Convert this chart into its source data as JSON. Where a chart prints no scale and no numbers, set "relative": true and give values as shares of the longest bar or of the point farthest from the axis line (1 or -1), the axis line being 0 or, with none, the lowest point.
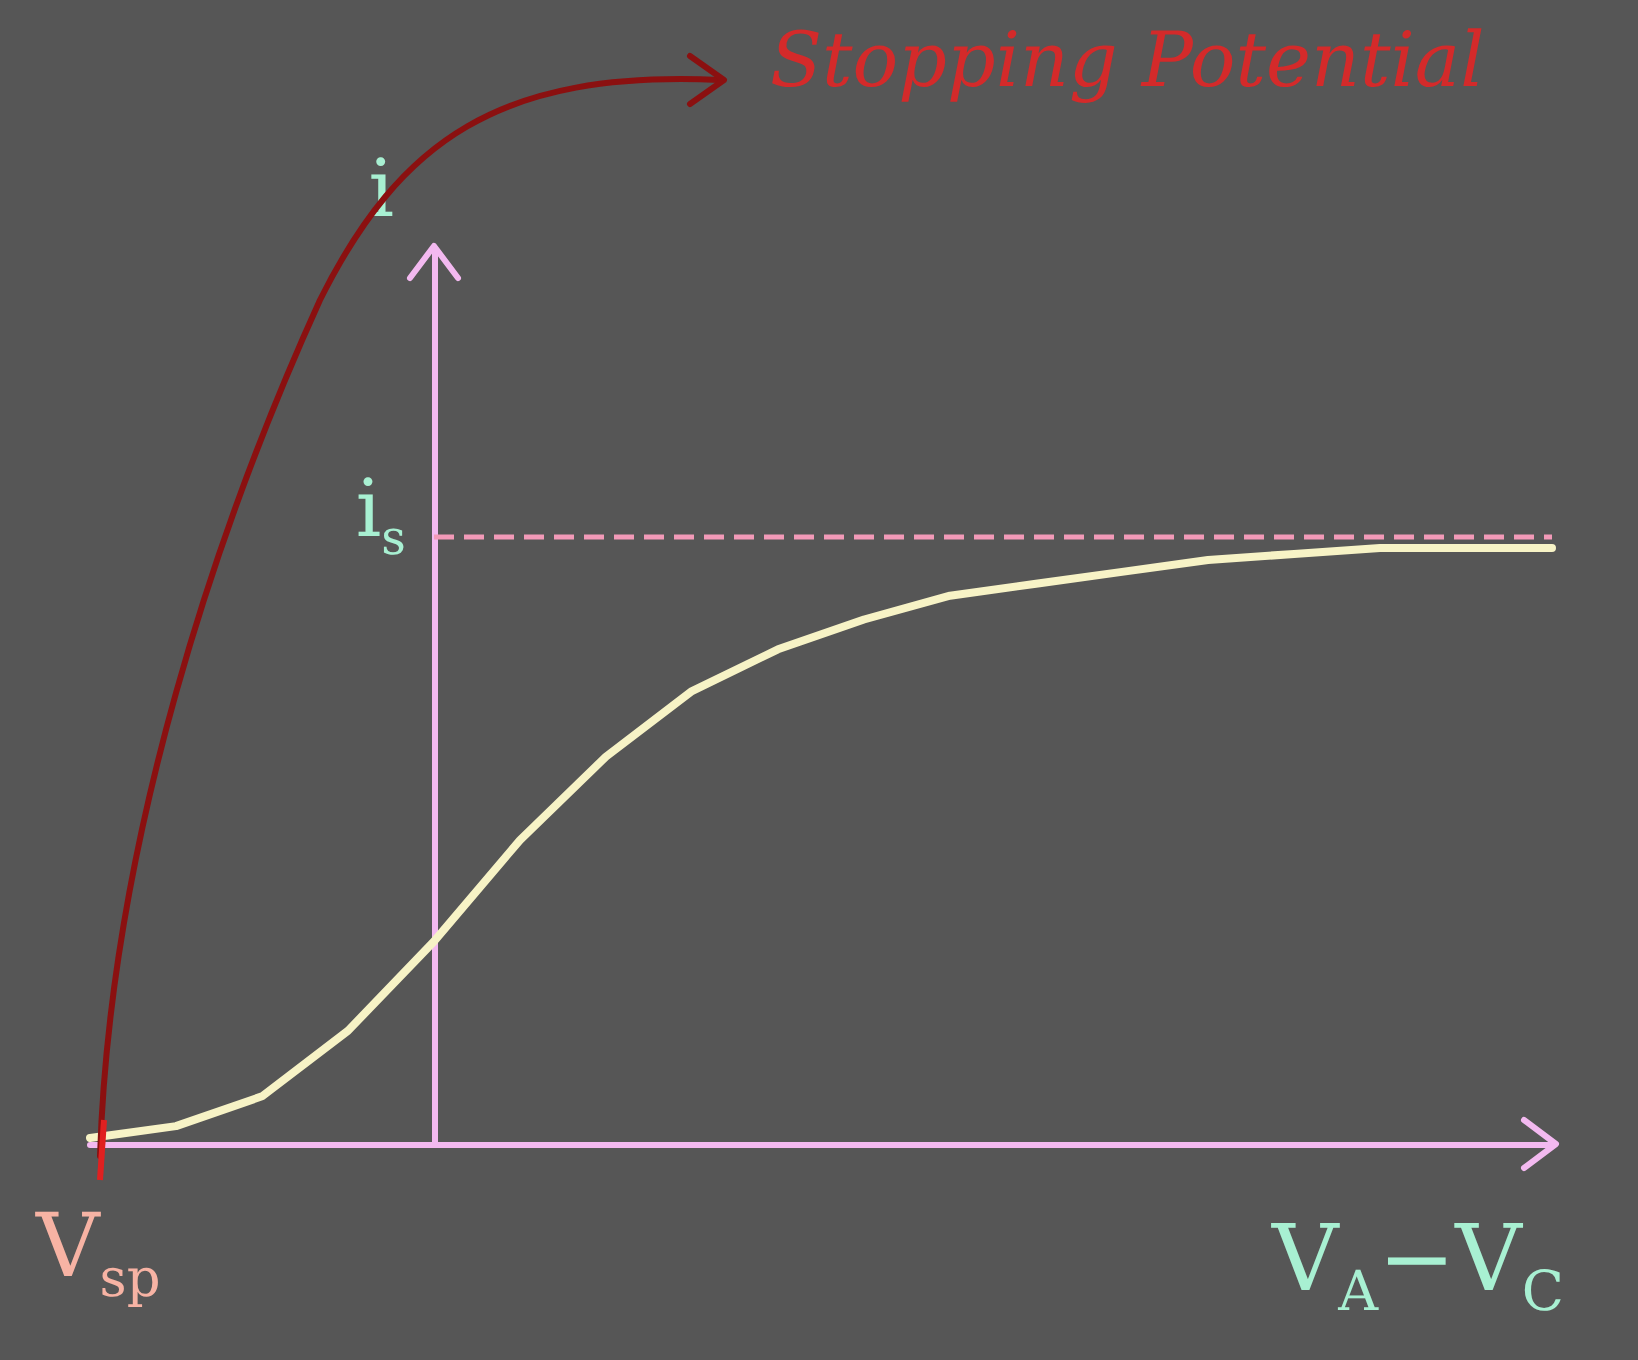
{
  "chart_data": {
    "type": "line",
    "relative": true,
    "categories": [
      null,
      null,
      null,
      null,
      null,
      null,
      null,
      null,
      null,
      null,
      null,
      null,
      null,
      null,
      null,
      null,
      null,
      null
    ],
    "series": [
      {
        "color": "#f7f3c6",
        "values": [
          0.01,
          0.03,
          0.08,
          0.19,
          0.34,
          0.51,
          0.65,
          0.76,
          0.83,
          0.88,
          0.92,
          0.94,
          0.96,
          0.98,
          0.99,
          1,
          1,
          1
        ]
      }
    ],
    "xlabel": "V$_{A}$−V$_{C}$",
    "ylabel": "i",
    "ref_lines": [
      {
        "axis": "y",
        "value": 1.02,
        "label": "i$_{s}$",
        "color": "#f29ab8",
        "line_style": "dashed"
      }
    ],
    "annotations": [
      "V$_{sp}$",
      "Stopping Potential"
    ],
    "marker": "none",
    "line_style": "solid",
    "grid": false
  }
}
